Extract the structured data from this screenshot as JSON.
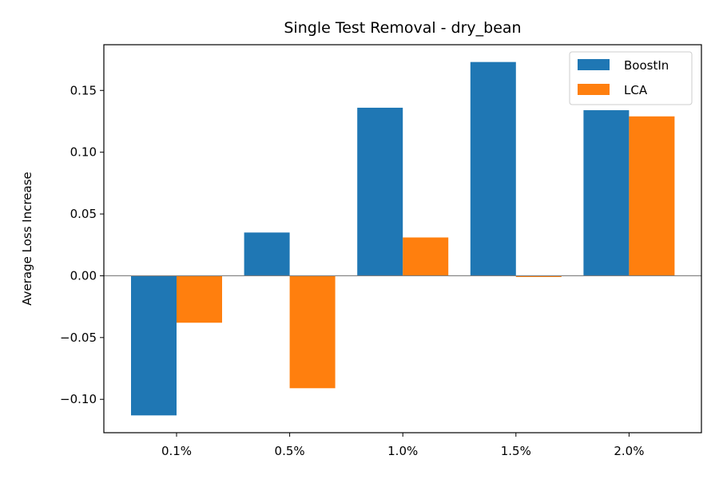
{
  "chart_data": {
    "type": "bar",
    "title": "Single Test Removal - dry_bean",
    "xlabel": "",
    "ylabel": "Average Loss Increase",
    "categories": [
      "0.1%",
      "0.5%",
      "1.0%",
      "1.5%",
      "2.0%"
    ],
    "series": [
      {
        "name": "BoostIn",
        "color": "#1f77b4",
        "values": [
          -0.113,
          0.035,
          0.136,
          0.173,
          0.134
        ]
      },
      {
        "name": "LCA",
        "color": "#ff7f0e",
        "values": [
          -0.038,
          -0.091,
          0.031,
          -0.001,
          0.129
        ]
      }
    ],
    "ylim": [
      -0.127,
      0.187
    ],
    "yticks": [
      -0.1,
      -0.05,
      0.0,
      0.05,
      0.1,
      0.15
    ],
    "ytick_labels": [
      "−0.10",
      "−0.05",
      "0.00",
      "0.05",
      "0.10",
      "0.15"
    ],
    "legend_position": "top-right",
    "grid": false
  }
}
